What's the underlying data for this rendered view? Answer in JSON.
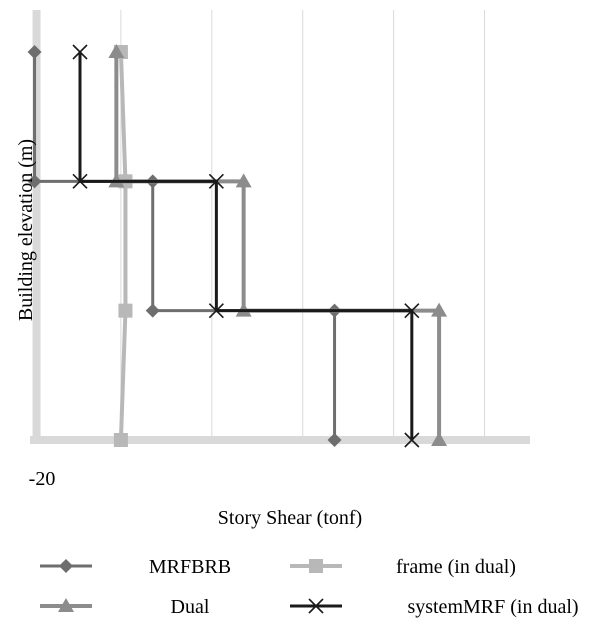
{
  "chart_data": {
    "type": "line",
    "xlabel": "Story Shear (tonf)",
    "ylabel": "Building elevation (m)",
    "x_tick_labels": [
      "-20"
    ],
    "xlim": [
      -20,
      90
    ],
    "ylim": [
      0,
      30
    ],
    "grid": true,
    "legend_position": "bottom",
    "series": [
      {
        "name": "MRFBRB",
        "color": "#6e6e6e",
        "marker": "diamond",
        "x": [
          -19,
          -19,
          7,
          7,
          47,
          47
        ],
        "y": [
          30,
          20,
          20,
          10,
          10,
          0
        ]
      },
      {
        "name": "frame (in dual)",
        "color": "#b8b8b8",
        "marker": "square",
        "x": [
          0,
          1,
          1,
          0
        ],
        "y": [
          30,
          20,
          10,
          0
        ]
      },
      {
        "name": "Dual",
        "color": "#8c8c8c",
        "marker": "triangle",
        "x": [
          -1,
          -1,
          27,
          27,
          70,
          70
        ],
        "y": [
          30,
          20,
          20,
          10,
          10,
          0
        ]
      },
      {
        "name": "systemMRF (in dual)",
        "color": "#1a1a1a",
        "marker": "x",
        "x": [
          -9,
          -9,
          21,
          21,
          64,
          64
        ],
        "y": [
          30,
          20,
          20,
          10,
          10,
          0
        ]
      }
    ]
  }
}
